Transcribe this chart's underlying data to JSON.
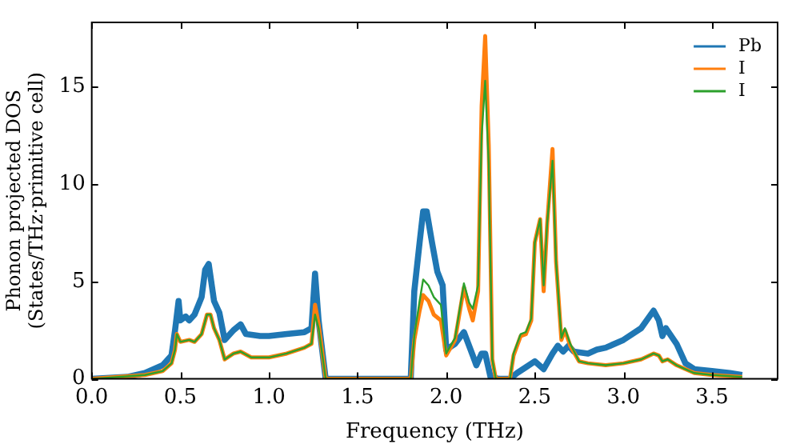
{
  "chart_data": {
    "type": "line",
    "xlabel": "Frequency (THz)",
    "ylabel": "Phonon projected DOS\n(States/THz·primitive cell)",
    "xlim": [
      0,
      3.87
    ],
    "ylim": [
      0,
      18.3
    ],
    "xticks": [
      {
        "value": 0,
        "label": "0.0"
      },
      0.5,
      {
        "value": 1,
        "label": "1.0"
      },
      1.5,
      {
        "value": 2,
        "label": "2.0"
      },
      2.5,
      {
        "value": 3,
        "label": "3.0"
      },
      3.5
    ],
    "yticks": [
      0,
      5,
      10,
      15
    ],
    "grid": false,
    "legend": "top right",
    "marker": "none",
    "line_style": "solid",
    "series": [
      {
        "name": "Pb",
        "color": "#1f77b4",
        "x": [
          0,
          0.2,
          0.3,
          0.4,
          0.45,
          0.47,
          0.49,
          0.5,
          0.53,
          0.55,
          0.58,
          0.62,
          0.64,
          0.66,
          0.69,
          0.72,
          0.75,
          0.8,
          0.84,
          0.87,
          0.95,
          1.0,
          1.1,
          1.2,
          1.24,
          1.26,
          1.28,
          1.32,
          1.8,
          1.82,
          1.85,
          1.87,
          1.89,
          1.92,
          1.95,
          1.98,
          2.0,
          2.05,
          2.1,
          2.15,
          2.17,
          2.2,
          2.22,
          2.25,
          2.3,
          2.36,
          2.4,
          2.45,
          2.5,
          2.55,
          2.6,
          2.63,
          2.66,
          2.69,
          2.72,
          2.8,
          2.85,
          2.9,
          3.0,
          3.1,
          3.17,
          3.2,
          3.22,
          3.24,
          3.3,
          3.35,
          3.4,
          3.5,
          3.6,
          3.67
        ],
        "values": [
          0,
          0.1,
          0.3,
          0.7,
          1.2,
          2.5,
          4.0,
          3.0,
          3.2,
          3.0,
          3.3,
          4.2,
          5.6,
          5.9,
          4.0,
          3.4,
          2.0,
          2.5,
          2.8,
          2.3,
          2.2,
          2.2,
          2.3,
          2.4,
          2.6,
          5.4,
          3.0,
          0,
          0,
          4.5,
          7.0,
          8.6,
          8.6,
          7.0,
          5.5,
          4.8,
          1.5,
          1.8,
          2.4,
          1.2,
          0.7,
          1.3,
          1.3,
          0.1,
          0,
          0,
          0.3,
          0.6,
          0.9,
          0.5,
          1.3,
          1.7,
          1.4,
          1.7,
          1.4,
          1.3,
          1.5,
          1.6,
          2.0,
          2.6,
          3.5,
          3.0,
          2.2,
          2.6,
          1.8,
          0.8,
          0.5,
          0.4,
          0.3,
          0.2
        ]
      },
      {
        "name": "I",
        "color": "#ff7f0e",
        "x": [
          0,
          0.3,
          0.4,
          0.45,
          0.47,
          0.48,
          0.5,
          0.55,
          0.58,
          0.62,
          0.65,
          0.67,
          0.69,
          0.72,
          0.75,
          0.8,
          0.84,
          0.9,
          1.0,
          1.1,
          1.2,
          1.24,
          1.26,
          1.28,
          1.32,
          1.8,
          1.82,
          1.85,
          1.87,
          1.9,
          1.93,
          1.97,
          2.0,
          2.05,
          2.1,
          2.13,
          2.15,
          2.18,
          2.2,
          2.22,
          2.24,
          2.26,
          2.28,
          2.36,
          2.38,
          2.42,
          2.45,
          2.48,
          2.5,
          2.53,
          2.55,
          2.57,
          2.6,
          2.62,
          2.65,
          2.67,
          2.7,
          2.75,
          2.8,
          2.9,
          3.0,
          3.1,
          3.17,
          3.2,
          3.22,
          3.25,
          3.3,
          3.4,
          3.5,
          3.67
        ],
        "values": [
          0,
          0.2,
          0.4,
          0.8,
          1.5,
          2.3,
          1.9,
          2.0,
          1.9,
          2.3,
          3.3,
          3.3,
          2.6,
          2.0,
          1.0,
          1.3,
          1.4,
          1.1,
          1.1,
          1.3,
          1.6,
          1.8,
          3.8,
          2.8,
          0,
          0,
          2.0,
          3.5,
          4.3,
          4.0,
          3.3,
          3.0,
          1.2,
          2.0,
          4.7,
          3.6,
          3.0,
          4.5,
          14.0,
          17.6,
          12.0,
          1.0,
          0,
          0,
          1.2,
          2.2,
          2.3,
          3.0,
          7.0,
          8.2,
          4.5,
          8.0,
          11.8,
          6.0,
          2.0,
          2.5,
          1.7,
          0.9,
          0.8,
          0.7,
          0.8,
          1.0,
          1.3,
          1.2,
          0.9,
          1.0,
          0.7,
          0.3,
          0.2,
          0.1
        ]
      },
      {
        "name": "I",
        "color": "#2ca02c",
        "x": [
          0,
          0.3,
          0.4,
          0.45,
          0.47,
          0.48,
          0.5,
          0.55,
          0.58,
          0.62,
          0.65,
          0.67,
          0.69,
          0.72,
          0.75,
          0.8,
          0.84,
          0.9,
          1.0,
          1.1,
          1.2,
          1.24,
          1.26,
          1.28,
          1.32,
          1.8,
          1.82,
          1.85,
          1.87,
          1.9,
          1.93,
          1.97,
          2.0,
          2.05,
          2.1,
          2.13,
          2.15,
          2.18,
          2.2,
          2.22,
          2.24,
          2.26,
          2.28,
          2.36,
          2.38,
          2.42,
          2.45,
          2.48,
          2.5,
          2.53,
          2.55,
          2.57,
          2.6,
          2.62,
          2.65,
          2.67,
          2.7,
          2.75,
          2.8,
          2.9,
          3.0,
          3.1,
          3.17,
          3.2,
          3.22,
          3.25,
          3.3,
          3.4,
          3.5,
          3.67
        ],
        "values": [
          0,
          0.2,
          0.4,
          0.8,
          1.5,
          2.3,
          1.9,
          2.0,
          1.9,
          2.3,
          3.3,
          3.3,
          2.6,
          2.0,
          1.0,
          1.3,
          1.4,
          1.1,
          1.1,
          1.3,
          1.6,
          1.8,
          3.3,
          2.6,
          0,
          0,
          2.2,
          4.0,
          5.1,
          4.8,
          4.2,
          3.8,
          1.3,
          2.1,
          4.9,
          3.9,
          3.6,
          4.8,
          12.5,
          15.3,
          11.0,
          1.0,
          0,
          0,
          1.3,
          2.3,
          2.4,
          3.1,
          7.0,
          8.2,
          4.8,
          8.0,
          11.2,
          6.0,
          2.1,
          2.6,
          1.8,
          0.9,
          0.8,
          0.7,
          0.8,
          1.0,
          1.3,
          1.2,
          0.9,
          1.0,
          0.7,
          0.3,
          0.2,
          0.1
        ]
      }
    ]
  }
}
